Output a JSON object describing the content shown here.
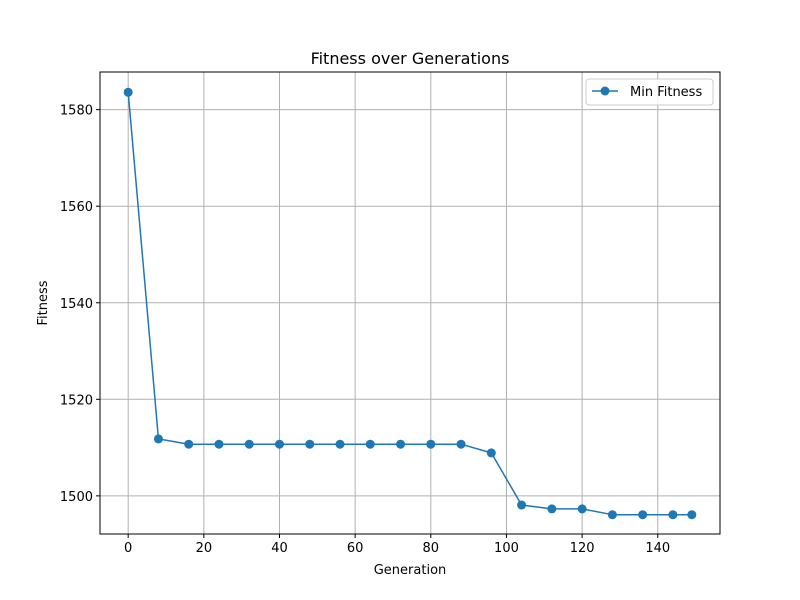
{
  "chart_data": {
    "type": "line",
    "title": "Fitness over Generations",
    "xlabel": "Generation",
    "ylabel": "Fitness",
    "xlim": [
      -7.45,
      156.45
    ],
    "ylim": [
      1492.1,
      1587.8
    ],
    "xticks": [
      0,
      20,
      40,
      60,
      80,
      100,
      120,
      140
    ],
    "yticks": [
      1500,
      1520,
      1540,
      1560,
      1580
    ],
    "grid": true,
    "legend_position": "top-right",
    "series": [
      {
        "name": "Min Fitness",
        "color": "#1f77b4",
        "marker": "circle",
        "x": [
          0,
          8,
          16,
          24,
          32,
          40,
          48,
          56,
          64,
          72,
          80,
          88,
          96,
          104,
          112,
          120,
          128,
          136,
          144,
          149
        ],
        "y": [
          1583.6,
          1511.8,
          1510.7,
          1510.7,
          1510.7,
          1510.7,
          1510.7,
          1510.7,
          1510.7,
          1510.7,
          1510.7,
          1510.7,
          1508.9,
          1498.1,
          1497.3,
          1497.3,
          1496.1,
          1496.1,
          1496.1,
          1496.1
        ]
      }
    ]
  }
}
